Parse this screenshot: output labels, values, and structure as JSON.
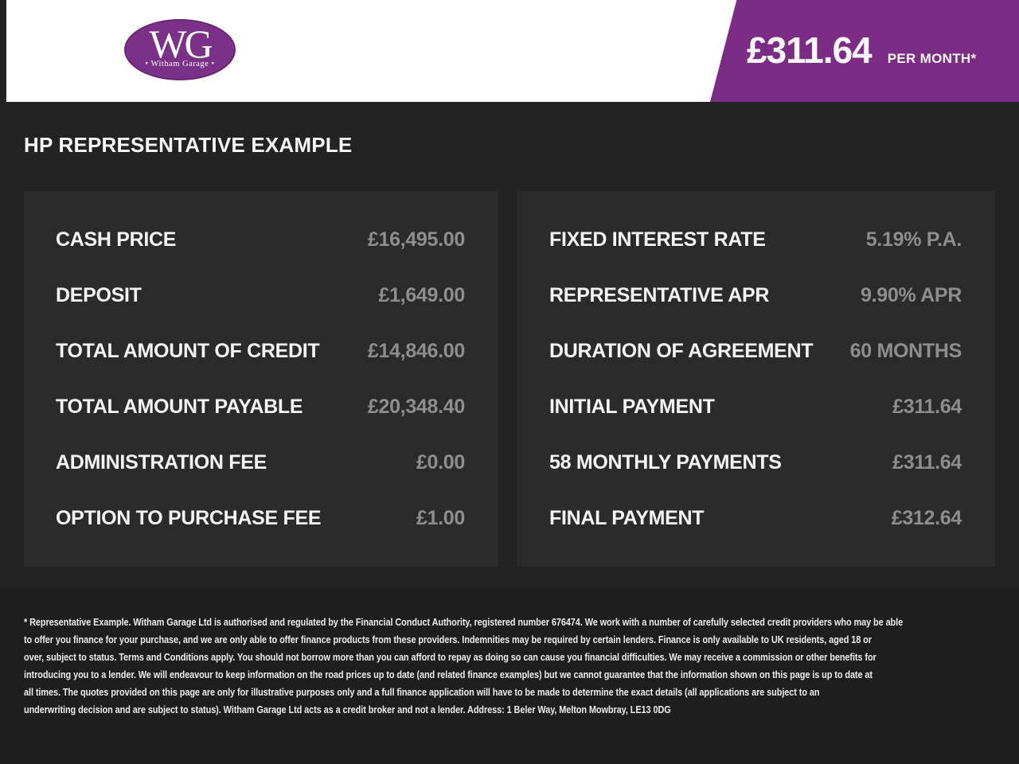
{
  "header": {
    "logo": {
      "initials": "WG",
      "name": "• Witham Garage •"
    },
    "banner": {
      "price": "£311.64",
      "per_label": "PER MONTH*"
    }
  },
  "main": {
    "title": "HP REPRESENTATIVE EXAMPLE",
    "left_panel": {
      "rows": [
        {
          "label": "CASH PRICE",
          "value": "£16,495.00"
        },
        {
          "label": "DEPOSIT",
          "value": "£1,649.00"
        },
        {
          "label": "TOTAL AMOUNT OF CREDIT",
          "value": "£14,846.00"
        },
        {
          "label": "TOTAL AMOUNT PAYABLE",
          "value": "£20,348.40"
        },
        {
          "label": "ADMINISTRATION FEE",
          "value": "£0.00"
        },
        {
          "label": "OPTION TO PURCHASE FEE",
          "value": "£1.00"
        }
      ]
    },
    "right_panel": {
      "rows": [
        {
          "label": "FIXED INTEREST RATE",
          "value": "5.19% P.A."
        },
        {
          "label": "REPRESENTATIVE APR",
          "value": "9.90% APR"
        },
        {
          "label": "DURATION OF AGREEMENT",
          "value": "60 MONTHS"
        },
        {
          "label": "INITIAL PAYMENT",
          "value": "£311.64"
        },
        {
          "label": "58 MONTHLY PAYMENTS",
          "value": "£311.64"
        },
        {
          "label": "FINAL PAYMENT",
          "value": "£312.64"
        }
      ]
    }
  },
  "footer": {
    "lines": [
      "* Representative Example. Witham Garage Ltd is authorised and regulated by the Financial Conduct Authority, registered number 676474. We work with a number of carefully selected credit providers who may be able",
      "to offer you finance for your purchase, and we are only able to offer finance products from these providers. Indemnities may be required by certain lenders. Finance is only available to UK residents, aged 18 or",
      "over, subject to status. Terms and Conditions apply. You should not borrow more than you can afford to repay as doing so can cause you financial difficulties. We may receive a commission or other benefits for",
      "introducing you to a lender. We will endeavour to keep information on the road prices up to date (and related finance examples) but we cannot guarantee that the information shown on this page is up to date at",
      "all times. The quotes provided on this page are only for illustrative purposes only and a full finance application will have to be made to determine the exact details (all applications are subject to an",
      "underwriting decision and are subject to status). Witham Garage Ltd acts as a credit broker and not a lender. Address: 1 Beler Way, Melton Mowbray, LE13 0DG"
    ]
  },
  "colors": {
    "accent_purple": "#7b2d86",
    "logo_purple": "#7c3188",
    "page_background": "#232323",
    "panel_background": "#2b2b2b",
    "footer_background": "#1e1e1e",
    "value_gray": "#8e8e8e",
    "label_white": "#f5f5f5"
  }
}
